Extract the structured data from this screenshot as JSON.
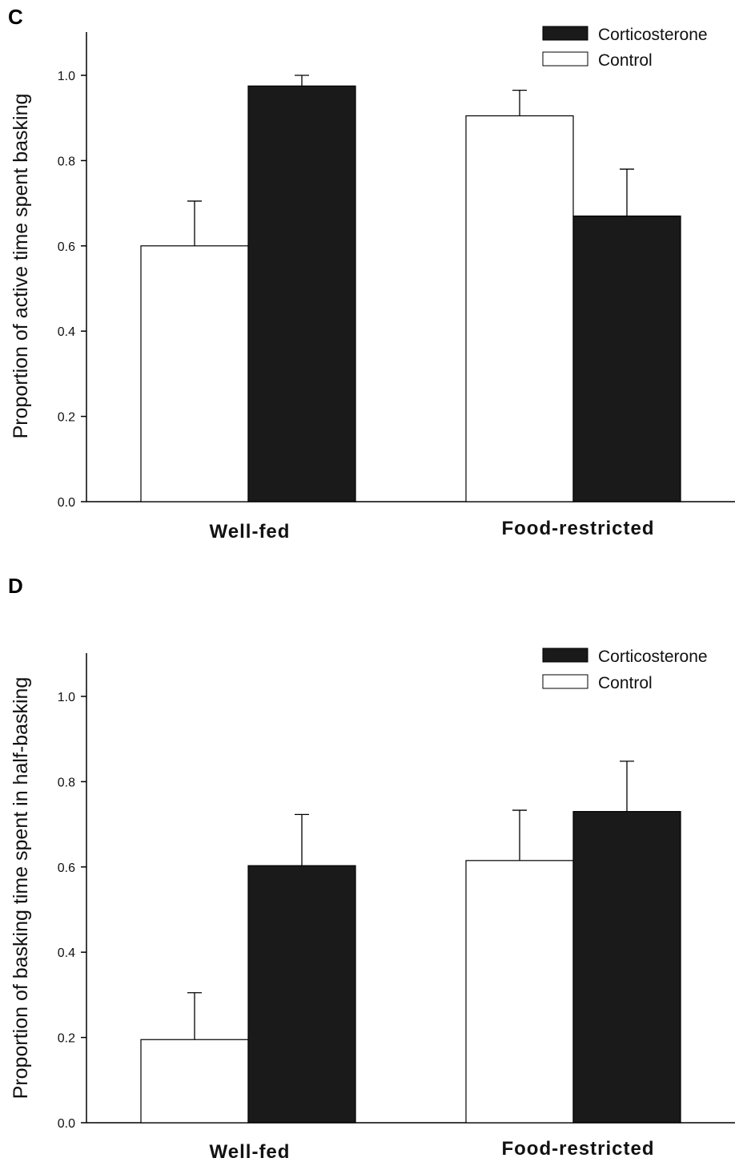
{
  "chart_data": [
    {
      "type": "bar",
      "panel": "C",
      "categories": [
        "Well-fed",
        "Food-restricted"
      ],
      "series": [
        {
          "name": "Control",
          "values": [
            0.6,
            0.905
          ],
          "error": [
            0.105,
            0.06
          ],
          "color": "#ffffff"
        },
        {
          "name": "Corticosterone",
          "values": [
            0.975,
            0.67
          ],
          "error": [
            0.025,
            0.11
          ],
          "color": "#1a1a1a"
        }
      ],
      "ylabel": "Proportion of active time spent basking",
      "ylim": [
        0,
        1.1
      ],
      "yticks": [
        "0.0",
        "0.2",
        "0.4",
        "0.6",
        "0.8",
        "1.0"
      ],
      "legend": {
        "placement": "top-right",
        "entries": [
          "Corticosterone",
          "Control"
        ]
      },
      "grid": false
    },
    {
      "type": "bar",
      "panel": "D",
      "categories": [
        "Well-fed",
        "Food-restricted"
      ],
      "series": [
        {
          "name": "Control",
          "values": [
            0.195,
            0.615
          ],
          "error": [
            0.11,
            0.118
          ],
          "color": "#ffffff"
        },
        {
          "name": "Corticosterone",
          "values": [
            0.603,
            0.73
          ],
          "error": [
            0.12,
            0.118
          ],
          "color": "#1a1a1a"
        }
      ],
      "ylabel": "Proportion of basking time spent in half-basking",
      "ylim": [
        0,
        1.1
      ],
      "yticks": [
        "0.0",
        "0.2",
        "0.4",
        "0.6",
        "0.8",
        "1.0"
      ],
      "legend": {
        "placement": "top-right",
        "entries": [
          "Corticosterone",
          "Control"
        ]
      },
      "grid": false
    }
  ]
}
